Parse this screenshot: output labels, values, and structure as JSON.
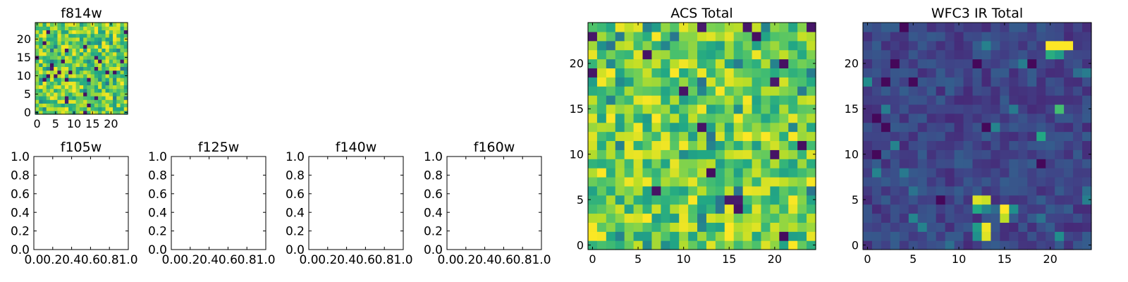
{
  "chart_data": [
    {
      "id": "f814w",
      "type": "heatmap",
      "title": "f814w",
      "grid_size": 25,
      "xlim": [
        -0.5,
        24.5
      ],
      "ylim": [
        -0.5,
        24.5
      ],
      "xticks": [
        0,
        5,
        10,
        15,
        20
      ],
      "yticks": [
        0,
        5,
        10,
        15,
        20
      ],
      "colormap": "viridis",
      "value_range": [
        0,
        1
      ],
      "grid": false,
      "values": "noisy field, mostly green-yellow (approx 0.55–1.0) with sparse dark pixels",
      "random_seed": 814
    },
    {
      "id": "f105w",
      "type": "empty",
      "title": "f105w",
      "xlim": [
        0.0,
        1.0
      ],
      "ylim": [
        0.0,
        1.0
      ],
      "xtick_labels": [
        "0.0",
        "0.2",
        "0.4",
        "0.6",
        "0.8",
        "1.0"
      ],
      "ytick_labels": [
        "0.0",
        "0.2",
        "0.4",
        "0.6",
        "0.8",
        "1.0"
      ]
    },
    {
      "id": "f125w",
      "type": "empty",
      "title": "f125w",
      "xlim": [
        0.0,
        1.0
      ],
      "ylim": [
        0.0,
        1.0
      ],
      "xtick_labels": [
        "0.0",
        "0.2",
        "0.4",
        "0.6",
        "0.8",
        "1.0"
      ],
      "ytick_labels": [
        "0.0",
        "0.2",
        "0.4",
        "0.6",
        "0.8",
        "1.0"
      ]
    },
    {
      "id": "f140w",
      "type": "empty",
      "title": "f140w",
      "xlim": [
        0.0,
        1.0
      ],
      "ylim": [
        0.0,
        1.0
      ],
      "xtick_labels": [
        "0.0",
        "0.2",
        "0.4",
        "0.6",
        "0.8",
        "1.0"
      ],
      "ytick_labels": [
        "0.0",
        "0.2",
        "0.4",
        "0.6",
        "0.8",
        "1.0"
      ]
    },
    {
      "id": "f160w",
      "type": "empty",
      "title": "f160w",
      "xlim": [
        0.0,
        1.0
      ],
      "ylim": [
        0.0,
        1.0
      ],
      "xtick_labels": [
        "0.0",
        "0.2",
        "0.4",
        "0.6",
        "0.8",
        "1.0"
      ],
      "ytick_labels": [
        "0.0",
        "0.2",
        "0.4",
        "0.6",
        "0.8",
        "1.0"
      ]
    },
    {
      "id": "acs-total",
      "type": "heatmap",
      "title": "ACS Total",
      "grid_size": 25,
      "xlim": [
        -0.5,
        24.5
      ],
      "ylim": [
        -0.5,
        24.5
      ],
      "xticks": [
        0,
        5,
        10,
        15,
        20
      ],
      "yticks": [
        0,
        5,
        10,
        15,
        20
      ],
      "colormap": "viridis",
      "value_range": [
        0,
        1
      ],
      "grid": false,
      "values": "noisy field, mostly green-yellow (approx 0.55–1.0) with sparse dark pixels",
      "random_seed": 1234
    },
    {
      "id": "wfc3-ir-total",
      "type": "heatmap",
      "title": "WFC3 IR Total",
      "grid_size": 25,
      "xlim": [
        -0.5,
        24.5
      ],
      "ylim": [
        -0.5,
        24.5
      ],
      "xticks": [
        0,
        5,
        10,
        15,
        20
      ],
      "yticks": [
        0,
        5,
        10,
        15,
        20
      ],
      "colormap": "viridis",
      "value_range": [
        0,
        1
      ],
      "grid": false,
      "values": "mostly dark blue (approx 0.10–0.30) with bright pixels",
      "random_seed": 4242,
      "bright_pixels": [
        {
          "x": 20,
          "y": 22,
          "value": 1.0
        },
        {
          "x": 21,
          "y": 22,
          "value": 1.0
        },
        {
          "x": 22,
          "y": 22,
          "value": 1.0
        },
        {
          "x": 20,
          "y": 21,
          "value": 0.62
        },
        {
          "x": 21,
          "y": 21,
          "value": 0.55
        },
        {
          "x": 12,
          "y": 5,
          "value": 0.95
        },
        {
          "x": 13,
          "y": 5,
          "value": 0.92
        },
        {
          "x": 12,
          "y": 4,
          "value": 0.6
        },
        {
          "x": 13,
          "y": 4,
          "value": 0.45
        },
        {
          "x": 14,
          "y": 4,
          "value": 0.35
        },
        {
          "x": 15,
          "y": 4,
          "value": 1.0
        },
        {
          "x": 15,
          "y": 3,
          "value": 0.9
        },
        {
          "x": 12,
          "y": 2,
          "value": 0.55
        },
        {
          "x": 13,
          "y": 2,
          "value": 0.98
        },
        {
          "x": 13,
          "y": 1,
          "value": 0.95
        },
        {
          "x": 12,
          "y": 1,
          "value": 0.5
        },
        {
          "x": 19,
          "y": 12,
          "value": 0.6
        },
        {
          "x": 21,
          "y": 15,
          "value": 0.7
        }
      ]
    }
  ]
}
